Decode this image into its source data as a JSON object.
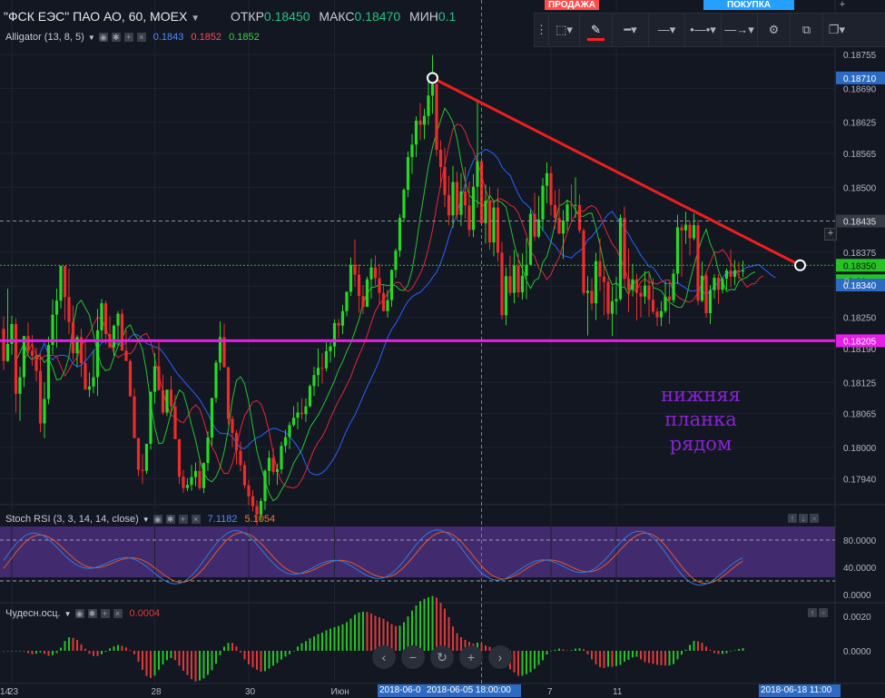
{
  "header": {
    "symbol": "\"ФСК ЕЭС\" ПАО АО, 60, MOEX",
    "open_label": "ОТКР",
    "open_value": "0.18450",
    "high_label": "МАКС",
    "high_value": "0.18470",
    "low_label": "МИН",
    "low_value": "0.1"
  },
  "top_buttons": {
    "sell": "ПРОДАЖА",
    "buy": "ПОКУПКА"
  },
  "alligator": {
    "label": "Alligator (13, 8, 5)",
    "v1": "0.1843",
    "v2": "0.1852",
    "v3": "0.1852",
    "colors": {
      "jaw": "#2962ff",
      "teeth": "#e0283b",
      "lips": "#26c230"
    }
  },
  "stoch": {
    "label": "Stoch RSI (3, 3, 14, 14, close)",
    "k": "7.1182",
    "d": "5.1054",
    "colors": {
      "k": "#2f7bd9",
      "d": "#e05a2a",
      "band": "#4a2e7a"
    }
  },
  "ao": {
    "label": "Чудесн.осц.",
    "value": "0.0004"
  },
  "annotation": {
    "line1": "нижняя планка",
    "line2": "рядом",
    "color": "#8a22d6"
  },
  "price_axis": {
    "ticks": [
      "0.18755",
      "0.18690",
      "0.18625",
      "0.18565",
      "0.18500",
      "0.18375",
      "0.18310",
      "0.18250",
      "0.18190",
      "0.18125",
      "0.18065",
      "0.18000",
      "0.17940"
    ],
    "labels": {
      "p18710": "0.18710",
      "p18435": "0.18435",
      "p18350": "0.18350",
      "time_to_close": "18:06",
      "p18340": "0.18340",
      "p18205": "0.18205",
      "zero": "0"
    }
  },
  "stoch_axis": [
    "80.0000",
    "40.0000",
    "0.0000"
  ],
  "ao_axis": [
    "0.0020",
    "0.0000"
  ],
  "time_axis": {
    "ticks": [
      "23",
      "28",
      "30",
      "Июн",
      "7",
      "11",
      "14"
    ],
    "crosshair_label": "2018-06-05 18:00:00",
    "left_label": "2018-06-0",
    "right_label": "2018-06-18 11:00"
  },
  "chart_data": {
    "type": "candlestick",
    "y_range": [
      0.1789,
      0.1879
    ],
    "colors": {
      "up": "#26d926",
      "down": "#ef2b2b"
    },
    "candles": [
      [
        0.18228,
        0.18252,
        0.18149,
        0.18166
      ],
      [
        0.18166,
        0.18305,
        0.18165,
        0.18199
      ],
      [
        0.18199,
        0.18253,
        0.18178,
        0.18237
      ],
      [
        0.18237,
        0.18248,
        0.18067,
        0.18103
      ],
      [
        0.18103,
        0.18155,
        0.18051,
        0.18135
      ],
      [
        0.18135,
        0.18214,
        0.18116,
        0.18214
      ],
      [
        0.18214,
        0.1824,
        0.1818,
        0.18186
      ],
      [
        0.18186,
        0.18216,
        0.18157,
        0.18176
      ],
      [
        0.18176,
        0.18191,
        0.18127,
        0.18147
      ],
      [
        0.18147,
        0.1818,
        0.18029,
        0.18046
      ],
      [
        0.18046,
        0.18125,
        0.18018,
        0.18093
      ],
      [
        0.18093,
        0.18213,
        0.18083,
        0.18197
      ],
      [
        0.18197,
        0.18284,
        0.18179,
        0.18255
      ],
      [
        0.18255,
        0.18305,
        0.18192,
        0.18282
      ],
      [
        0.18282,
        0.18349,
        0.18267,
        0.18349
      ],
      [
        0.18349,
        0.18349,
        0.18245,
        0.18289
      ],
      [
        0.18289,
        0.18344,
        0.18218,
        0.18241
      ],
      [
        0.18241,
        0.18273,
        0.18169,
        0.18181
      ],
      [
        0.18181,
        0.18216,
        0.18154,
        0.18212
      ],
      [
        0.18212,
        0.18228,
        0.18135,
        0.18162
      ],
      [
        0.18162,
        0.18203,
        0.18111,
        0.18111
      ],
      [
        0.18111,
        0.18144,
        0.18097,
        0.18117
      ],
      [
        0.18117,
        0.18186,
        0.18104,
        0.18135
      ],
      [
        0.18135,
        0.18266,
        0.18099,
        0.18225
      ],
      [
        0.18225,
        0.18285,
        0.18208,
        0.18277
      ],
      [
        0.18277,
        0.18282,
        0.18198,
        0.18218
      ],
      [
        0.18218,
        0.18252,
        0.18192,
        0.18192
      ],
      [
        0.18192,
        0.18236,
        0.18176,
        0.18234
      ],
      [
        0.18234,
        0.18262,
        0.18197,
        0.18257
      ],
      [
        0.18257,
        0.18266,
        0.18186,
        0.18186
      ],
      [
        0.18186,
        0.18225,
        0.18166,
        0.18166
      ],
      [
        0.18166,
        0.18169,
        0.18098,
        0.18098
      ],
      [
        0.18098,
        0.18113,
        0.18018,
        0.18018
      ],
      [
        0.18018,
        0.18018,
        0.17945,
        0.17957
      ],
      [
        0.17957,
        0.17987,
        0.1793,
        0.17955
      ],
      [
        0.17955,
        0.18007,
        0.17949,
        0.18007
      ],
      [
        0.18007,
        0.18107,
        0.17996,
        0.18107
      ],
      [
        0.18107,
        0.18181,
        0.18084,
        0.18156
      ],
      [
        0.18156,
        0.18202,
        0.1811,
        0.1811
      ],
      [
        0.1811,
        0.1814,
        0.18063,
        0.18067
      ],
      [
        0.18067,
        0.18111,
        0.1806,
        0.18111
      ],
      [
        0.18111,
        0.18137,
        0.18068,
        0.18079
      ],
      [
        0.18079,
        0.18101,
        0.18016,
        0.18016
      ],
      [
        0.18016,
        0.18016,
        0.1793,
        0.17944
      ],
      [
        0.17944,
        0.17957,
        0.17913,
        0.17922
      ],
      [
        0.17922,
        0.17941,
        0.17916,
        0.17928
      ],
      [
        0.17928,
        0.17966,
        0.17917,
        0.17943
      ],
      [
        0.17943,
        0.17971,
        0.17925,
        0.17955
      ],
      [
        0.17955,
        0.17975,
        0.17918,
        0.17922
      ],
      [
        0.17922,
        0.17971,
        0.17912,
        0.1797
      ],
      [
        0.1797,
        0.18031,
        0.17955,
        0.18019
      ],
      [
        0.18019,
        0.18095,
        0.18003,
        0.18095
      ],
      [
        0.18095,
        0.18168,
        0.18086,
        0.18163
      ],
      [
        0.18163,
        0.18242,
        0.18148,
        0.18212
      ],
      [
        0.18212,
        0.18238,
        0.18154,
        0.18154
      ],
      [
        0.18154,
        0.18155,
        0.18044,
        0.18055
      ],
      [
        0.18055,
        0.18061,
        0.18001,
        0.18028
      ],
      [
        0.18028,
        0.18034,
        0.17967,
        0.17994
      ],
      [
        0.17994,
        0.18011,
        0.17954,
        0.17966
      ],
      [
        0.17966,
        0.17974,
        0.17921,
        0.17927
      ],
      [
        0.17927,
        0.17938,
        0.17889,
        0.17906
      ],
      [
        0.17906,
        0.17918,
        0.17877,
        0.17887
      ],
      [
        0.17887,
        0.17899,
        0.17851,
        0.17871
      ],
      [
        0.17871,
        0.17902,
        0.1786,
        0.17897
      ],
      [
        0.17897,
        0.17958,
        0.1788,
        0.17955
      ],
      [
        0.17955,
        0.17994,
        0.17927,
        0.1798
      ],
      [
        0.1798,
        0.17998,
        0.17947,
        0.17953
      ],
      [
        0.17953,
        0.17969,
        0.17928,
        0.17958
      ],
      [
        0.17958,
        0.18011,
        0.17949,
        0.18003
      ],
      [
        0.18003,
        0.18034,
        0.1799,
        0.1802
      ],
      [
        0.1802,
        0.18049,
        0.17997,
        0.18043
      ],
      [
        0.18043,
        0.18079,
        0.1804,
        0.18057
      ],
      [
        0.18057,
        0.18087,
        0.18035,
        0.18067
      ],
      [
        0.18067,
        0.18094,
        0.18054,
        0.18064
      ],
      [
        0.18064,
        0.18094,
        0.18049,
        0.18079
      ],
      [
        0.18079,
        0.18121,
        0.18077,
        0.18118
      ],
      [
        0.18118,
        0.18155,
        0.18099,
        0.18139
      ],
      [
        0.18139,
        0.1819,
        0.18117,
        0.18153
      ],
      [
        0.18153,
        0.18181,
        0.18123,
        0.18152
      ],
      [
        0.18152,
        0.18202,
        0.18146,
        0.18185
      ],
      [
        0.18185,
        0.18202,
        0.18163,
        0.18194
      ],
      [
        0.18194,
        0.18246,
        0.18173,
        0.18239
      ],
      [
        0.18239,
        0.18247,
        0.1821,
        0.18234
      ],
      [
        0.18234,
        0.18274,
        0.18218,
        0.18262
      ],
      [
        0.18262,
        0.183,
        0.18252,
        0.18299
      ],
      [
        0.18299,
        0.18365,
        0.18291,
        0.18351
      ],
      [
        0.18351,
        0.184,
        0.18309,
        0.18332
      ],
      [
        0.18332,
        0.18352,
        0.18259,
        0.18291
      ],
      [
        0.18291,
        0.18312,
        0.18256,
        0.1827
      ],
      [
        0.1827,
        0.18328,
        0.1827,
        0.18323
      ],
      [
        0.18323,
        0.18363,
        0.18286,
        0.18346
      ],
      [
        0.18346,
        0.18369,
        0.18311,
        0.18325
      ],
      [
        0.18325,
        0.18353,
        0.18274,
        0.18297
      ],
      [
        0.18297,
        0.18314,
        0.18261,
        0.18262
      ],
      [
        0.18262,
        0.18302,
        0.1825,
        0.18283
      ],
      [
        0.18283,
        0.18342,
        0.1827,
        0.18341
      ],
      [
        0.18341,
        0.18382,
        0.18326,
        0.18378
      ],
      [
        0.18378,
        0.18448,
        0.18366,
        0.18441
      ],
      [
        0.18441,
        0.18498,
        0.18433,
        0.18495
      ],
      [
        0.18495,
        0.18569,
        0.18481,
        0.18558
      ],
      [
        0.18558,
        0.18602,
        0.18526,
        0.18582
      ],
      [
        0.18582,
        0.18636,
        0.18558,
        0.18628
      ],
      [
        0.18628,
        0.18662,
        0.1859,
        0.1862
      ],
      [
        0.1862,
        0.18651,
        0.18592,
        0.18637
      ],
      [
        0.18637,
        0.18711,
        0.1862,
        0.18676
      ],
      [
        0.18676,
        0.18754,
        0.18641,
        0.18698
      ],
      [
        0.18698,
        0.187,
        0.1856,
        0.18572
      ],
      [
        0.18572,
        0.1859,
        0.185,
        0.18539
      ],
      [
        0.18539,
        0.18576,
        0.18462,
        0.18485
      ],
      [
        0.18485,
        0.18522,
        0.18427,
        0.18446
      ],
      [
        0.18446,
        0.18541,
        0.18422,
        0.1851
      ],
      [
        0.1851,
        0.1853,
        0.18436,
        0.18447
      ],
      [
        0.18447,
        0.18527,
        0.18426,
        0.18492
      ],
      [
        0.18492,
        0.18539,
        0.18439,
        0.18465
      ],
      [
        0.18465,
        0.18511,
        0.18405,
        0.18418
      ],
      [
        0.18418,
        0.18525,
        0.18404,
        0.18501
      ],
      [
        0.18501,
        0.18665,
        0.18461,
        0.1855
      ],
      [
        0.1855,
        0.18557,
        0.18426,
        0.18431
      ],
      [
        0.18431,
        0.18505,
        0.18392,
        0.18474
      ],
      [
        0.18474,
        0.18501,
        0.1838,
        0.18394
      ],
      [
        0.18394,
        0.18473,
        0.18367,
        0.18461
      ],
      [
        0.18461,
        0.18498,
        0.18357,
        0.18374
      ],
      [
        0.18374,
        0.18395,
        0.18246,
        0.18254
      ],
      [
        0.18254,
        0.18346,
        0.18235,
        0.18329
      ],
      [
        0.18329,
        0.18369,
        0.18291,
        0.18297
      ],
      [
        0.18297,
        0.1838,
        0.18277,
        0.18349
      ],
      [
        0.18349,
        0.18373,
        0.18288,
        0.18298
      ],
      [
        0.18298,
        0.18373,
        0.18284,
        0.1833
      ],
      [
        0.1833,
        0.18402,
        0.18285,
        0.18351
      ],
      [
        0.18351,
        0.18457,
        0.1835,
        0.18449
      ],
      [
        0.18449,
        0.18489,
        0.18397,
        0.18405
      ],
      [
        0.18405,
        0.18483,
        0.18402,
        0.18438
      ],
      [
        0.18438,
        0.18518,
        0.18416,
        0.18503
      ],
      [
        0.18503,
        0.18548,
        0.18469,
        0.18527
      ],
      [
        0.18527,
        0.1854,
        0.18446,
        0.18466
      ],
      [
        0.18466,
        0.18494,
        0.1842,
        0.18441
      ],
      [
        0.18441,
        0.18497,
        0.1841,
        0.18411
      ],
      [
        0.18411,
        0.18456,
        0.18362,
        0.18436
      ],
      [
        0.18436,
        0.18476,
        0.18417,
        0.18467
      ],
      [
        0.18467,
        0.18505,
        0.18434,
        0.18466
      ],
      [
        0.18466,
        0.18519,
        0.18441,
        0.18466
      ],
      [
        0.18466,
        0.18486,
        0.18412,
        0.18417
      ],
      [
        0.18417,
        0.18421,
        0.18292,
        0.18297
      ],
      [
        0.18297,
        0.18329,
        0.18215,
        0.18301
      ],
      [
        0.18301,
        0.18325,
        0.18264,
        0.18277
      ],
      [
        0.18277,
        0.18374,
        0.18245,
        0.18358
      ],
      [
        0.18358,
        0.18402,
        0.183,
        0.18328
      ],
      [
        0.18328,
        0.18351,
        0.18254,
        0.18318
      ],
      [
        0.18318,
        0.18327,
        0.18245,
        0.18257
      ],
      [
        0.18257,
        0.1831,
        0.18214,
        0.18281
      ],
      [
        0.18281,
        0.18328,
        0.18255,
        0.18285
      ],
      [
        0.18285,
        0.18448,
        0.18282,
        0.18441
      ],
      [
        0.18441,
        0.18463,
        0.18309,
        0.18324
      ],
      [
        0.18324,
        0.18382,
        0.1826,
        0.18303
      ],
      [
        0.18303,
        0.18353,
        0.1829,
        0.18323
      ],
      [
        0.18323,
        0.18334,
        0.18244,
        0.18297
      ],
      [
        0.18297,
        0.18311,
        0.1825,
        0.1829
      ],
      [
        0.1829,
        0.18339,
        0.18276,
        0.18311
      ],
      [
        0.18311,
        0.18335,
        0.18251,
        0.18284
      ],
      [
        0.18284,
        0.18325,
        0.18256,
        0.18261
      ],
      [
        0.18261,
        0.18268,
        0.18233,
        0.1825
      ],
      [
        0.1825,
        0.18281,
        0.18233,
        0.18262
      ],
      [
        0.18262,
        0.18319,
        0.18258,
        0.1829
      ],
      [
        0.1829,
        0.18318,
        0.18237,
        0.18283
      ],
      [
        0.18283,
        0.18343,
        0.18277,
        0.18334
      ],
      [
        0.18334,
        0.18447,
        0.18314,
        0.18423
      ],
      [
        0.18423,
        0.1843,
        0.18328,
        0.18417
      ],
      [
        0.18417,
        0.18453,
        0.18391,
        0.18428
      ],
      [
        0.18428,
        0.18434,
        0.18369,
        0.18402
      ],
      [
        0.18402,
        0.18449,
        0.18398,
        0.18427
      ],
      [
        0.18427,
        0.18437,
        0.18273,
        0.18282
      ],
      [
        0.18282,
        0.18357,
        0.18279,
        0.1833
      ],
      [
        0.1833,
        0.18336,
        0.18249,
        0.18258
      ],
      [
        0.18258,
        0.18312,
        0.18237,
        0.18302
      ],
      [
        0.18302,
        0.18333,
        0.18286,
        0.18326
      ],
      [
        0.18326,
        0.18333,
        0.18276,
        0.18303
      ],
      [
        0.18303,
        0.18327,
        0.18296,
        0.18324
      ],
      [
        0.18324,
        0.18344,
        0.18303,
        0.1834
      ],
      [
        0.1834,
        0.1838,
        0.18308,
        0.18328
      ],
      [
        0.18328,
        0.1836,
        0.18312,
        0.1834
      ],
      [
        0.1834,
        0.18357,
        0.18323,
        0.18338
      ],
      [
        0.18338,
        0.18359,
        0.18328,
        0.1834
      ]
    ],
    "trend_line": {
      "from": [
        105,
        0.1871
      ],
      "to": [
        195,
        0.1835
      ],
      "color": "#f01e1e"
    },
    "support_level": {
      "price": 0.18205,
      "color": "#e61ee6"
    },
    "current_price": 0.1835,
    "dashed_level": 0.18435,
    "crosshair_index": 117
  }
}
